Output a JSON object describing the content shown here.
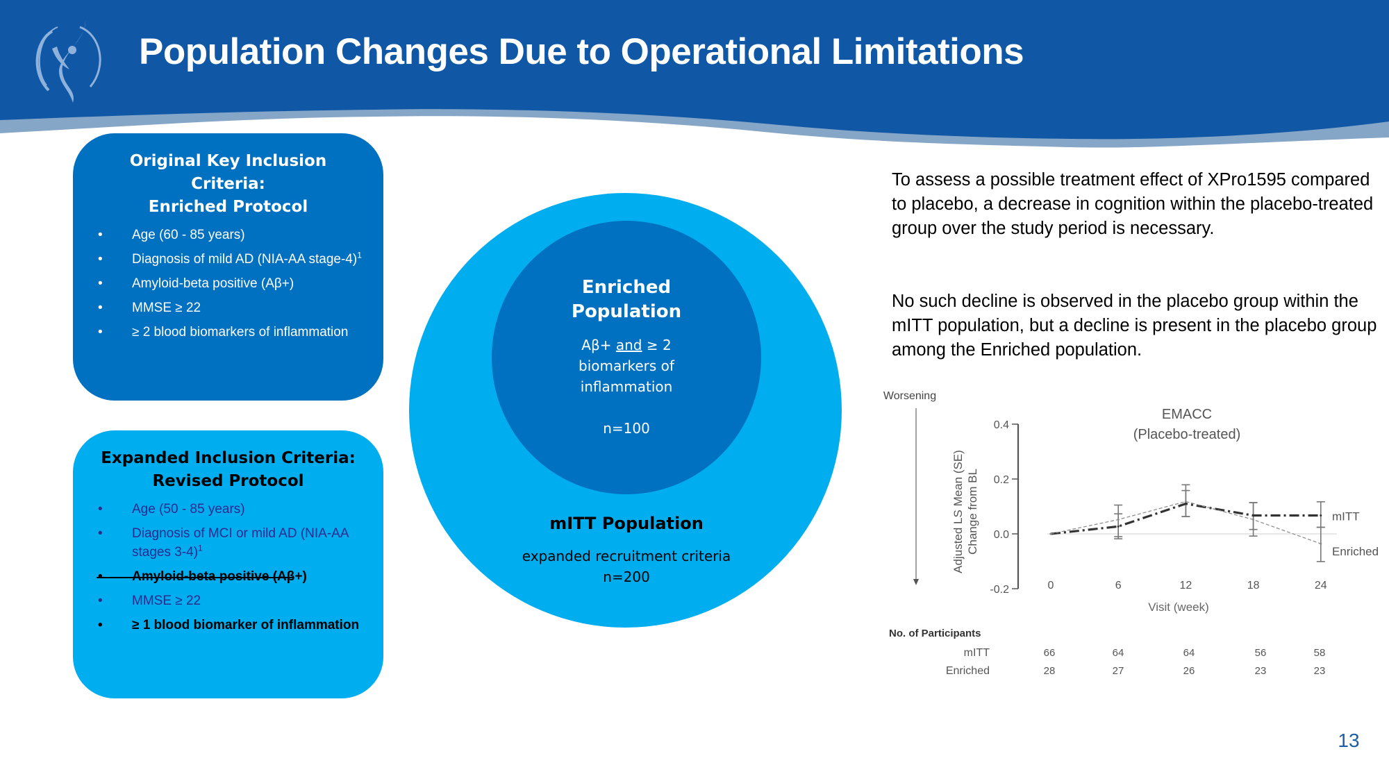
{
  "header": {
    "title": "Population Changes Due to Operational Limitations",
    "logo": "company-logo-figure",
    "colors": {
      "band": "#1058a6",
      "band_shadow": "#86a6c8",
      "logo": "#8fb2dc"
    }
  },
  "original_criteria": {
    "title_line1": "Original Key Inclusion Criteria:",
    "title_line2": "Enriched Protocol",
    "bullet": "•",
    "items": [
      {
        "text": "Age (60 - 85 years)",
        "sup": ""
      },
      {
        "text": "Diagnosis of mild AD (NIA-AA stage-4)",
        "sup": "1"
      },
      {
        "text": "Amyloid-beta positive (Aβ+)",
        "sup": ""
      },
      {
        "text": "MMSE ≥ 22",
        "sup": ""
      },
      {
        "text": "≥ 2 blood biomarkers of inflammation",
        "sup": ""
      }
    ],
    "color": "#0070c0"
  },
  "expanded_criteria": {
    "title_line1": "Expanded Inclusion Criteria:",
    "title_line2": "Revised Protocol",
    "bullet": "•",
    "items": [
      {
        "text": "Age (50 - 85 years)",
        "sup": "",
        "style": "changed"
      },
      {
        "text": "Diagnosis of MCI or mild AD (NIA-AA stages 3-4)",
        "sup": "1",
        "style": "changed"
      },
      {
        "text": "Amyloid-beta positive (Aβ+)",
        "sup": "",
        "style": "removed-strikethrough"
      },
      {
        "text": "MMSE ≥ 22",
        "sup": "",
        "style": "changed"
      },
      {
        "text": "≥ 1 blood biomarker of inflammation",
        "sup": "",
        "style": "bold"
      }
    ],
    "color": "#00adef"
  },
  "population_diagram": {
    "inner": {
      "title_line1": "Enriched",
      "title_line2": "Population",
      "criteria_prefix": "Aβ+ ",
      "criteria_and": "and",
      "criteria_suffix": " ≥ 2",
      "criteria_line2": "biomarkers of",
      "criteria_line3": "inflammation",
      "n": "n=100",
      "color": "#0070c0"
    },
    "outer": {
      "title": "mITT Population",
      "description": "expanded recruitment criteria",
      "n": "n=200",
      "color": "#00adef"
    }
  },
  "explanation": {
    "paragraph1": "To assess a possible treatment effect of XPro1595 compared to placebo, a decrease in cognition within the placebo-treated group over the study period is necessary.",
    "paragraph2": "No such decline is observed in the placebo group within the mITT population, but a decline is present in the placebo group among the Enriched population."
  },
  "chart_data": {
    "type": "line",
    "title_line1": "EMACC",
    "title_line2": "(Placebo-treated)",
    "xlabel": "Visit (week)",
    "ylabel_line1": "Adjusted LS Mean (SE)",
    "ylabel_line2": "Change from BL",
    "direction_label": "Worsening",
    "x": [
      0,
      6,
      12,
      18,
      24
    ],
    "x_tick_labels": [
      "0",
      "6",
      "12",
      "18",
      "24"
    ],
    "ylim": [
      -0.2,
      0.4
    ],
    "y_ticks": [
      -0.2,
      0.0,
      0.2,
      0.4
    ],
    "y_tick_labels": [
      "-0.2",
      "0.0",
      "0.2",
      "0.4"
    ],
    "reference_line": 0.0,
    "grid": false,
    "series": [
      {
        "name": "mITT",
        "style": "dash-dot-thick",
        "values": [
          0.0,
          0.027,
          0.11,
          0.067,
          0.067
        ],
        "se_low": [
          0.0,
          -0.018,
          0.063,
          -0.008,
          0.024
        ],
        "se_high": [
          0.0,
          0.073,
          0.158,
          0.114,
          0.117
        ]
      },
      {
        "name": "Enriched",
        "style": "dashed-thin",
        "values": [
          0.0,
          0.052,
          0.118,
          0.052,
          -0.036
        ],
        "se_low": [
          0.0,
          -0.01,
          0.063,
          0.016,
          -0.101
        ],
        "se_high": [
          0.0,
          0.105,
          0.179,
          0.114,
          0.024
        ]
      }
    ],
    "legend": [
      "mITT",
      "Enriched"
    ],
    "legend_placement": "right-inline",
    "participants": {
      "heading": "No. of Participants",
      "rows": [
        {
          "label": "mITT",
          "counts": [
            "66",
            "64",
            "64",
            "56",
            "58"
          ]
        },
        {
          "label": "Enriched",
          "counts": [
            "28",
            "27",
            "26",
            "23",
            "23"
          ]
        }
      ]
    }
  },
  "footer": {
    "page_number": "13"
  }
}
